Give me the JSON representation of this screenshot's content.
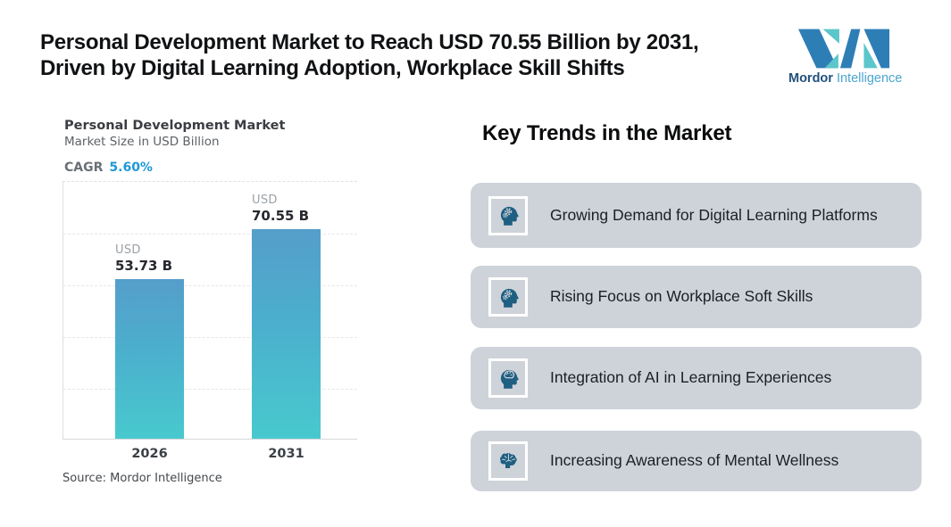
{
  "page": {
    "title_line1": "Personal Development Market to Reach USD 70.55 Billion by 2031,",
    "title_line2": "Driven by Digital Learning Adoption, Workplace Skill Shifts"
  },
  "logo": {
    "brand_bold": "Mordor",
    "brand_light": "Intelligence",
    "mark_dark_blue": "#2E7EB6",
    "mark_teal": "#5BC6CB"
  },
  "chart": {
    "title": "Personal Development Market",
    "subtitle": "Market Size in USD Billion",
    "cagr_label": "CAGR",
    "cagr_value": "5.60%",
    "source": "Source: Mordor Intelligence",
    "bars": [
      {
        "year": "2026",
        "currency": "USD",
        "value_label": "53.73 B",
        "value": 53.73
      },
      {
        "year": "2031",
        "currency": "USD",
        "value_label": "70.55 B",
        "value": 70.55
      }
    ]
  },
  "chart_data": {
    "type": "bar",
    "title": "Personal Development Market",
    "subtitle": "Market Size in USD Billion",
    "categories": [
      "2026",
      "2031"
    ],
    "values": [
      53.73,
      70.55
    ],
    "unit": "USD Billion",
    "cagr": "5.60%",
    "ylim": [
      0,
      87
    ],
    "grid": "horizontal-dashed",
    "legend": "none",
    "bar_color_top": "#559ECB",
    "bar_color_bottom": "#48C9CE",
    "source": "Source: Mordor Intelligence"
  },
  "trends": {
    "heading": "Key Trends in the Market",
    "card_color": "#CED3D9",
    "icon_color": "#1E5F82",
    "items": [
      {
        "icon": "head-gears-icon",
        "text": "Growing Demand for Digital Learning Platforms"
      },
      {
        "icon": "head-gears-icon",
        "text": "Rising Focus on Workplace Soft Skills"
      },
      {
        "icon": "head-brain-icon",
        "text": "Integration of AI in Learning Experiences"
      },
      {
        "icon": "brain-icon",
        "text": "Increasing Awareness of Mental Wellness"
      }
    ]
  }
}
